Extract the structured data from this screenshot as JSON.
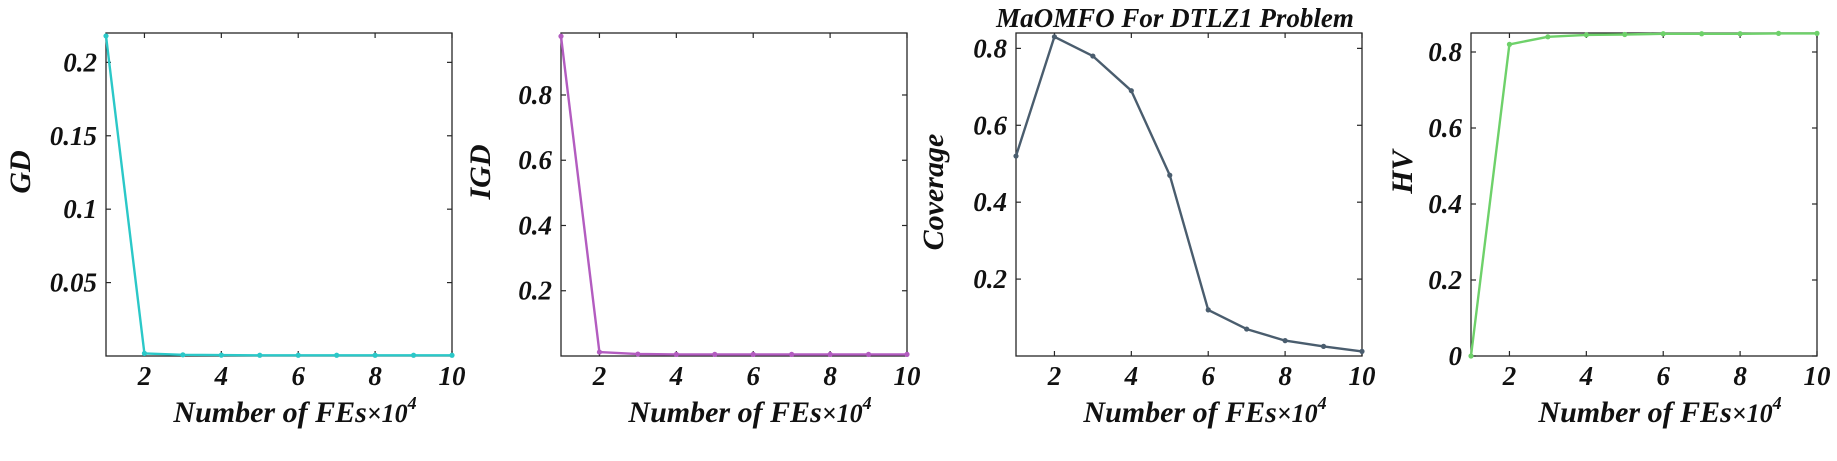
{
  "title": "MaOMFO For DTLZ1 Problem",
  "chart_data": [
    {
      "type": "line",
      "xlabel": "Number of FEs",
      "xlabel_multiplier": "×10",
      "xlabel_exponent": "4",
      "ylabel": "GD",
      "x": [
        1,
        2,
        3,
        4,
        5,
        6,
        7,
        8,
        9,
        10
      ],
      "series": [
        {
          "values": [
            0.218,
            0.0018,
            0.0008,
            0.0006,
            0.0005,
            0.0005,
            0.0005,
            0.0005,
            0.0005,
            0.0005
          ]
        }
      ],
      "color": "#2bc8c8",
      "xlim": [
        1,
        10
      ],
      "ylim": [
        0,
        0.22
      ],
      "xticks": [
        2,
        4,
        6,
        8,
        10
      ],
      "xtick_labels": [
        "2",
        "4",
        "6",
        "8",
        "10"
      ],
      "yticks": [
        0.05,
        0.1,
        0.15,
        0.2
      ],
      "ytick_labels": [
        "0.05",
        "0.1",
        "0.15",
        "0.2"
      ],
      "grid": false
    },
    {
      "type": "line",
      "xlabel": "Number of FEs",
      "xlabel_multiplier": "×10",
      "xlabel_exponent": "4",
      "ylabel": "IGD",
      "x": [
        1,
        2,
        3,
        4,
        5,
        6,
        7,
        8,
        9,
        10
      ],
      "series": [
        {
          "values": [
            0.98,
            0.012,
            0.006,
            0.005,
            0.005,
            0.005,
            0.005,
            0.005,
            0.005,
            0.005
          ]
        }
      ],
      "color": "#b35cc0",
      "xlim": [
        1,
        10
      ],
      "ylim": [
        0,
        0.99
      ],
      "xticks": [
        2,
        4,
        6,
        8,
        10
      ],
      "xtick_labels": [
        "2",
        "4",
        "6",
        "8",
        "10"
      ],
      "yticks": [
        0.2,
        0.4,
        0.6,
        0.8
      ],
      "ytick_labels": [
        "0.2",
        "0.4",
        "0.6",
        "0.8"
      ],
      "grid": false
    },
    {
      "type": "line",
      "xlabel": "Number of FEs",
      "xlabel_multiplier": "×10",
      "xlabel_exponent": "4",
      "ylabel": "Coverage",
      "x": [
        1,
        2,
        3,
        4,
        5,
        6,
        7,
        8,
        9,
        10
      ],
      "series": [
        {
          "values": [
            0.52,
            0.83,
            0.78,
            0.69,
            0.47,
            0.12,
            0.07,
            0.04,
            0.025,
            0.012
          ]
        }
      ],
      "color": "#4a5d6e",
      "xlim": [
        1,
        10
      ],
      "ylim": [
        0,
        0.84
      ],
      "xticks": [
        2,
        4,
        6,
        8,
        10
      ],
      "xtick_labels": [
        "2",
        "4",
        "6",
        "8",
        "10"
      ],
      "yticks": [
        0.2,
        0.4,
        0.6,
        0.8
      ],
      "ytick_labels": [
        "0.2",
        "0.4",
        "0.6",
        "0.8"
      ],
      "grid": false
    },
    {
      "type": "line",
      "xlabel": "Number of FEs",
      "xlabel_multiplier": "×10",
      "xlabel_exponent": "4",
      "ylabel": "HV",
      "x": [
        1,
        2,
        3,
        4,
        5,
        6,
        7,
        8,
        9,
        10
      ],
      "series": [
        {
          "values": [
            0.0,
            0.82,
            0.84,
            0.845,
            0.846,
            0.848,
            0.848,
            0.848,
            0.849,
            0.849
          ]
        }
      ],
      "color": "#6ed16a",
      "xlim": [
        1,
        10
      ],
      "ylim": [
        0,
        0.85
      ],
      "xticks": [
        2,
        4,
        6,
        8,
        10
      ],
      "xtick_labels": [
        "2",
        "4",
        "6",
        "8",
        "10"
      ],
      "yticks": [
        0,
        0.2,
        0.4,
        0.6,
        0.8
      ],
      "ytick_labels": [
        "0",
        "0.2",
        "0.4",
        "0.6",
        "0.8"
      ],
      "grid": false
    }
  ]
}
